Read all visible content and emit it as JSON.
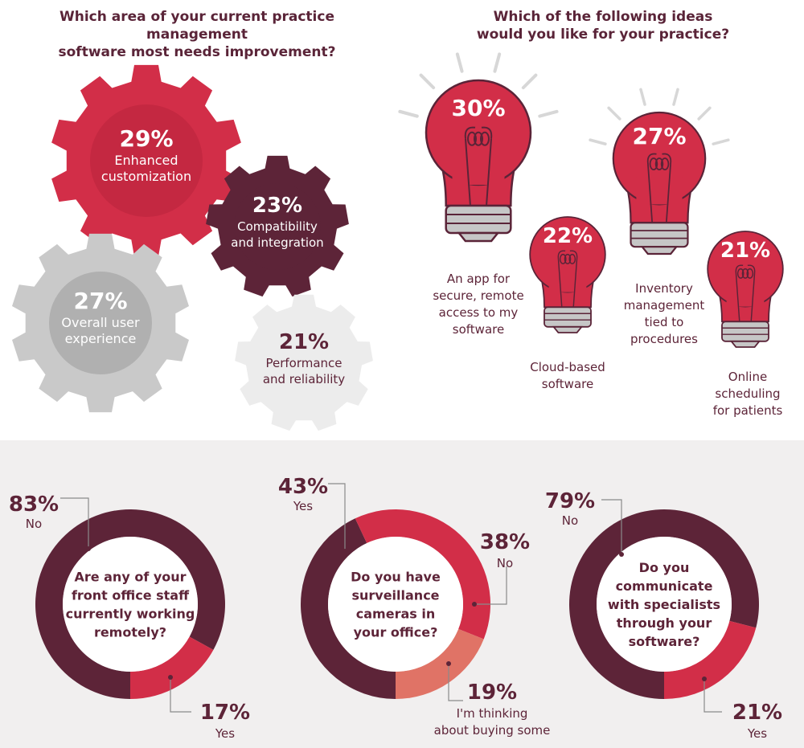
{
  "left_panel": {
    "title_line1": "Which area of your current practice management",
    "title_line2": "software most needs improvement?"
  },
  "right_panel": {
    "title_line1": "Which of the following ideas",
    "title_line2": "would you like for your practice?"
  },
  "colors": {
    "red": "#d22e48",
    "dark_red": "#c42841",
    "maroon": "#5d2438",
    "gray": "#c9c9c9",
    "gray_inner": "#b0b0b0",
    "light_gray": "#ececec",
    "salmon": "#e07366",
    "bulb_base": "#c6c6c6",
    "bulb_stroke": "#5a2438",
    "bulb_ray": "#d7d7d7"
  },
  "chart_data": [
    {
      "type": "gear",
      "question": "Which area of your current practice management software most needs improvement?",
      "items": [
        {
          "value": "29%",
          "label_line1": "Enhanced",
          "label_line2": "customization"
        },
        {
          "value": "23%",
          "label_line1": "Compatibility",
          "label_line2": "and integration"
        },
        {
          "value": "27%",
          "label_line1": "Overall user",
          "label_line2": "experience"
        },
        {
          "value": "21%",
          "label_line1": "Performance",
          "label_line2": "and reliability"
        }
      ]
    },
    {
      "type": "bulb",
      "question": "Which of the following ideas would you like for your practice?",
      "items": [
        {
          "value": "30%",
          "label_lines": [
            "An app for",
            "secure, remote",
            "access to my",
            "software"
          ]
        },
        {
          "value": "22%",
          "label_lines": [
            "Cloud-based",
            "software"
          ]
        },
        {
          "value": "27%",
          "label_lines": [
            "Inventory",
            "management",
            "tied to",
            "procedures"
          ]
        },
        {
          "value": "21%",
          "label_lines": [
            "Online",
            "scheduling",
            "for patients"
          ]
        }
      ]
    },
    {
      "type": "pie",
      "question_lines": [
        "Are any of your",
        "front office staff",
        "currently working",
        "remotely?"
      ],
      "slices": [
        {
          "label": "No",
          "value": 83,
          "display": "83%",
          "color": "#5d2438"
        },
        {
          "label": "Yes",
          "value": 17,
          "display": "17%",
          "color": "#d22e48"
        }
      ]
    },
    {
      "type": "pie",
      "question_lines": [
        "Do you have",
        "surveillance",
        "cameras in",
        "your office?"
      ],
      "slices": [
        {
          "label": "Yes",
          "value": 43,
          "display": "43%",
          "color": "#5d2438"
        },
        {
          "label": "No",
          "value": 38,
          "display": "38%",
          "color": "#d22e48"
        },
        {
          "label_lines": [
            "I'm thinking",
            "about buying some"
          ],
          "value": 19,
          "display": "19%",
          "color": "#e07366"
        }
      ]
    },
    {
      "type": "pie",
      "question_lines": [
        "Do you",
        "communicate",
        "with specialists",
        "through your",
        "software?"
      ],
      "slices": [
        {
          "label": "No",
          "value": 79,
          "display": "79%",
          "color": "#5d2438"
        },
        {
          "label": "Yes",
          "value": 21,
          "display": "21%",
          "color": "#d22e48"
        }
      ]
    }
  ]
}
